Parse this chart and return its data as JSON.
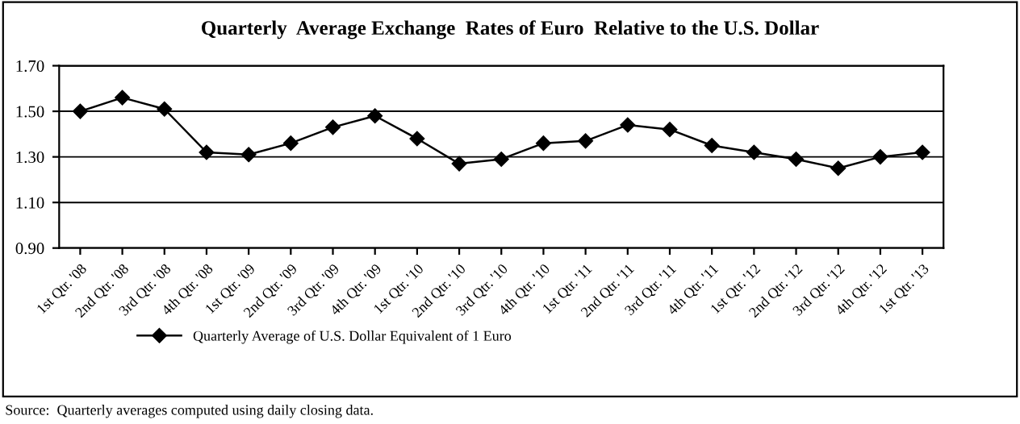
{
  "chart_data": {
    "type": "line",
    "title": "Quarterly  Average Exchange  Rates of Euro  Relative to the U.S. Dollar",
    "categories": [
      "1st Qtr. '08",
      "2nd Qtr. '08",
      "3rd Qtr. '08",
      "4th Qtr. '08",
      "1st Qtr. '09",
      "2nd Qtr. '09",
      "3rd Qtr. '09",
      "4th Qtr. '09",
      "1st Qtr. '10",
      "2nd Qtr. '10",
      "3rd Qtr. '10",
      "4th Qtr. '10",
      "1st Qtr. '11",
      "2nd Qtr. '11",
      "3rd Qtr. '11",
      "4th Qtr. '11",
      "1st Qtr. '12",
      "2nd Qtr. '12",
      "3rd Qtr. '12",
      "4th Qtr. '12",
      "1st Qtr. '13"
    ],
    "series": [
      {
        "name": "Quarterly Average of U.S. Dollar Equivalent of 1 Euro",
        "color": "#000000",
        "values": [
          1.5,
          1.56,
          1.51,
          1.32,
          1.31,
          1.36,
          1.43,
          1.48,
          1.38,
          1.27,
          1.29,
          1.36,
          1.37,
          1.44,
          1.42,
          1.35,
          1.32,
          1.29,
          1.25,
          1.3,
          1.32
        ]
      }
    ],
    "ylim": [
      0.9,
      1.7
    ],
    "yticks": [
      {
        "value": 0.9,
        "label": "0.90"
      },
      {
        "value": 1.1,
        "label": "1.10"
      },
      {
        "value": 1.3,
        "label": "1.30"
      },
      {
        "value": 1.5,
        "label": "1.50"
      },
      {
        "value": 1.7,
        "label": "1.70"
      }
    ],
    "grid": "y",
    "legend": "bottom",
    "marker": "diamond",
    "line_style": "solid",
    "annotations": [
      "Source:  Quarterly averages computed using daily closing data."
    ]
  }
}
